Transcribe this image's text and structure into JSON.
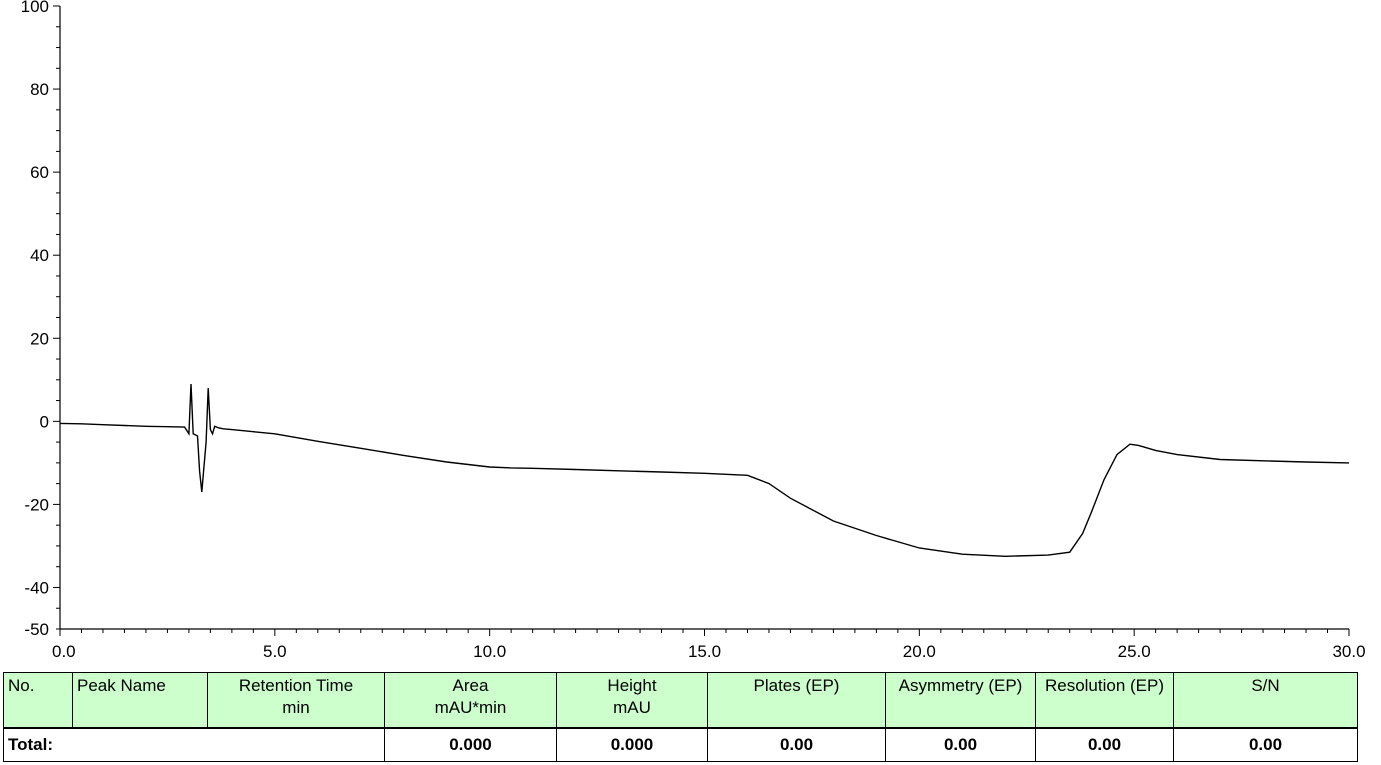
{
  "chart_data": {
    "type": "line",
    "title": "",
    "xlabel": "",
    "ylabel": "",
    "xlim": [
      0,
      30
    ],
    "ylim": [
      -50,
      100
    ],
    "x_ticks": [
      "0.0",
      "5.0",
      "10.0",
      "15.0",
      "20.0",
      "25.0",
      "30.0"
    ],
    "y_ticks": [
      "100",
      "80",
      "60",
      "40",
      "20",
      "0",
      "-20",
      "-40",
      "-50"
    ],
    "grid": false,
    "series": [
      {
        "color": "#000000",
        "x": [
          0.0,
          0.5,
          1.0,
          1.5,
          2.0,
          2.5,
          2.9,
          3.0,
          3.05,
          3.1,
          3.2,
          3.25,
          3.3,
          3.4,
          3.45,
          3.5,
          3.55,
          3.6,
          3.7,
          3.8,
          4.0,
          4.5,
          5.0,
          6.0,
          7.0,
          8.0,
          9.0,
          10.0,
          10.5,
          11.0,
          12.0,
          13.0,
          14.0,
          15.0,
          16.0,
          16.5,
          17.0,
          18.0,
          19.0,
          20.0,
          21.0,
          22.0,
          23.0,
          23.5,
          23.8,
          24.0,
          24.3,
          24.6,
          24.9,
          25.1,
          25.5,
          26.0,
          27.0,
          28.0,
          29.0,
          30.0
        ],
        "y": [
          -0.5,
          -0.6,
          -0.8,
          -1.0,
          -1.2,
          -1.3,
          -1.4,
          -3.0,
          9.0,
          -3.0,
          -3.5,
          -12.0,
          -17.0,
          -5.0,
          8.0,
          -2.0,
          -3.0,
          -1.2,
          -1.6,
          -1.8,
          -2.0,
          -2.5,
          -3.0,
          -4.8,
          -6.5,
          -8.2,
          -9.8,
          -11.0,
          -11.2,
          -11.3,
          -11.6,
          -11.9,
          -12.2,
          -12.5,
          -13.0,
          -15.0,
          -18.5,
          -24.0,
          -27.5,
          -30.5,
          -32.0,
          -32.5,
          -32.2,
          -31.5,
          -27.0,
          -22.0,
          -14.0,
          -8.0,
          -5.5,
          -5.8,
          -7.0,
          -8.0,
          -9.2,
          -9.5,
          -9.8,
          -10.0
        ]
      }
    ]
  },
  "table": {
    "headers": [
      {
        "line1": "No.",
        "line2": ""
      },
      {
        "line1": "Peak Name",
        "line2": ""
      },
      {
        "line1": "Retention Time",
        "line2": "min"
      },
      {
        "line1": "Area",
        "line2": "mAU*min"
      },
      {
        "line1": "Height",
        "line2": "mAU"
      },
      {
        "line1": "Plates (EP)",
        "line2": ""
      },
      {
        "line1": "Asymmetry (EP)",
        "line2": ""
      },
      {
        "line1": "Resolution (EP)",
        "line2": ""
      },
      {
        "line1": "S/N",
        "line2": ""
      }
    ],
    "total": {
      "label": "Total:",
      "area": "0.000",
      "height": "0.000",
      "plates": "0.00",
      "asymmetry": "0.00",
      "resolution": "0.00",
      "sn": "0.00"
    }
  }
}
